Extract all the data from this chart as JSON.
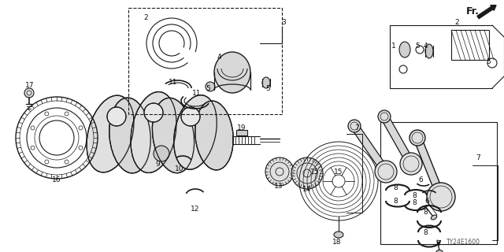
{
  "background_color": "#ffffff",
  "diagram_code": "TY24E1600",
  "line_color": "#1a1a1a",
  "label_fontsize": 6.5,
  "text_color": "#111111",
  "figsize": [
    6.4,
    3.2
  ],
  "dpi": 100
}
